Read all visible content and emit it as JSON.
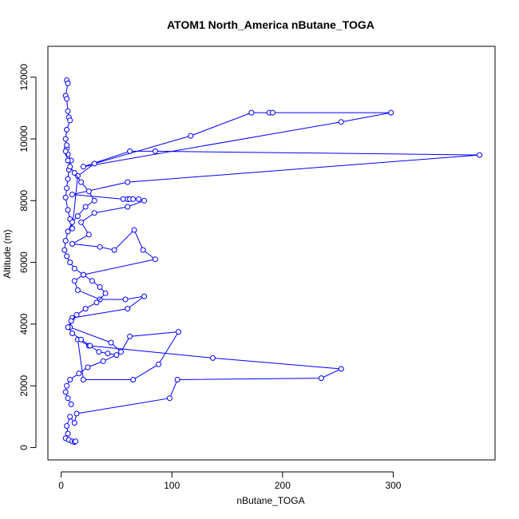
{
  "chart_data": {
    "type": "line",
    "title": "ATOM1 North_America nButane_TOGA",
    "xlabel": "nButane_TOGA",
    "ylabel": "Altitude (m)",
    "xlim": [
      -12,
      392
    ],
    "ylim": [
      -400,
      13000
    ],
    "x_ticks": [
      0,
      100,
      200,
      300
    ],
    "y_ticks": [
      0,
      2000,
      4000,
      6000,
      8000,
      10000,
      12000
    ],
    "grid": false,
    "legend": "none",
    "markers": "open-circle",
    "line_color": "#0000ff",
    "series": [
      {
        "x": [
          5,
          6,
          4,
          5,
          6,
          7,
          8,
          5,
          4,
          5,
          6,
          9,
          7,
          6,
          5,
          4,
          6,
          8,
          10,
          15,
          30,
          117,
          172,
          188,
          191,
          298,
          253,
          20,
          62,
          85,
          378,
          60,
          10,
          56,
          60,
          62,
          65,
          70,
          75,
          60,
          30,
          18,
          25,
          10,
          35,
          48,
          66,
          74,
          85,
          20,
          12,
          15,
          35,
          58,
          75,
          60,
          10,
          8,
          45,
          54,
          62,
          106,
          88,
          65,
          20,
          15,
          25,
          137,
          253,
          235,
          105,
          98,
          14,
          12,
          8,
          5,
          6,
          4,
          7,
          10,
          12,
          13
        ],
        "y": [
          11900,
          11800,
          11400,
          11300,
          10900,
          10700,
          10600,
          10300,
          10000,
          9700,
          9500,
          9300,
          9000,
          8700,
          8400,
          8100,
          7700,
          7400,
          7100,
          8800,
          9200,
          10100,
          10850,
          10850,
          10850,
          10850,
          10550,
          9100,
          9600,
          9600,
          9480,
          8600,
          8200,
          8050,
          8050,
          8050,
          8050,
          8050,
          8000,
          7800,
          7600,
          7300,
          6900,
          6600,
          6500,
          6400,
          7050,
          6400,
          6100,
          5600,
          5400,
          5100,
          4800,
          4800,
          4900,
          4500,
          4200,
          3900,
          3400,
          3100,
          3600,
          3750,
          2700,
          2200,
          2200,
          3500,
          3300,
          2900,
          2550,
          2250,
          2200,
          1600,
          1100,
          800,
          1000,
          700,
          450,
          300,
          250,
          200,
          180,
          200
        ]
      },
      {
        "x": [
          5,
          4,
          6,
          8,
          12,
          18,
          25,
          30,
          22,
          15,
          10,
          6,
          4,
          3,
          5,
          8,
          12,
          20,
          28,
          35,
          40,
          32,
          22,
          14,
          9,
          6,
          10,
          18,
          26,
          34,
          42,
          50,
          38,
          24,
          16,
          8,
          5,
          4,
          6,
          9
        ],
        "y": [
          9800,
          9600,
          9300,
          9100,
          8900,
          8600,
          8300,
          8000,
          7800,
          7500,
          7300,
          7000,
          6700,
          6400,
          6200,
          6000,
          5800,
          5600,
          5400,
          5200,
          5000,
          4700,
          4500,
          4300,
          4100,
          3900,
          3700,
          3500,
          3300,
          3100,
          3050,
          3000,
          2800,
          2600,
          2400,
          2200,
          2000,
          1800,
          1600,
          1400
        ]
      }
    ]
  }
}
